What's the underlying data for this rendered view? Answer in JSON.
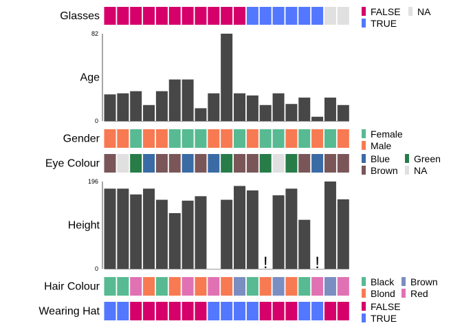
{
  "chart_data": {
    "type": "heatmap",
    "n_columns": 19,
    "na_color": "#e0e0e0",
    "bar_color": "#474747",
    "tracks": [
      {
        "name": "Glasses",
        "kind": "categorical",
        "values": [
          "FALSE",
          "FALSE",
          "FALSE",
          "FALSE",
          "FALSE",
          "FALSE",
          "FALSE",
          "FALSE",
          "FALSE",
          "FALSE",
          "FALSE",
          "TRUE",
          "TRUE",
          "TRUE",
          "TRUE",
          "TRUE",
          "TRUE",
          "NA",
          "NA"
        ],
        "legend": [
          {
            "label": "FALSE",
            "color": "#d5006a"
          },
          {
            "label": "TRUE",
            "color": "#5378ff"
          },
          {
            "label": "NA",
            "color": "#e0e0e0"
          }
        ]
      },
      {
        "name": "Age",
        "kind": "bar",
        "ylim": [
          0,
          82
        ],
        "ticks": [
          "0",
          "82"
        ],
        "values": [
          25,
          26,
          28,
          15,
          28,
          39,
          39,
          12,
          26,
          82,
          26,
          24,
          15,
          26,
          16,
          22,
          4,
          22,
          15
        ]
      },
      {
        "name": "Gender",
        "kind": "categorical",
        "values": [
          "Male",
          "Male",
          "Female",
          "Male",
          "Male",
          "Female",
          "Female",
          "Female",
          "Male",
          "Male",
          "Female",
          "Male",
          "Female",
          "Female",
          "Male",
          "Female",
          "Male",
          "Female",
          "Male"
        ],
        "legend": [
          {
            "label": "Female",
            "color": "#58ba92"
          },
          {
            "label": "Male",
            "color": "#f87a52"
          }
        ]
      },
      {
        "name": "Eye Colour",
        "kind": "categorical",
        "values": [
          "Brown",
          "NA",
          "Green",
          "Blue",
          "Brown",
          "Brown",
          "Blue",
          "Brown",
          "Blue",
          "Green",
          "Brown",
          "Brown",
          "Green",
          "NA",
          "Green",
          "Brown",
          "Blue",
          "Brown",
          "Brown"
        ],
        "legend": [
          {
            "label": "Blue",
            "color": "#3a6ba5"
          },
          {
            "label": "Brown",
            "color": "#7a5659"
          },
          {
            "label": "Green",
            "color": "#277c48"
          },
          {
            "label": "NA",
            "color": "#e0e0e0"
          }
        ]
      },
      {
        "name": "Height",
        "kind": "bar",
        "ylim": [
          0,
          196
        ],
        "ticks": [
          "0",
          "196"
        ],
        "values": [
          180,
          180,
          167,
          180,
          155,
          125,
          153,
          163,
          null,
          155,
          186,
          176,
          null,
          165,
          180,
          110,
          null,
          196,
          156
        ],
        "flags": [
          null,
          null,
          null,
          null,
          null,
          null,
          null,
          null,
          null,
          null,
          null,
          null,
          "!",
          null,
          null,
          null,
          "!",
          null,
          null
        ]
      },
      {
        "name": "Hair Colour",
        "kind": "categorical",
        "values": [
          "Black",
          "Black",
          "Red",
          "Blond",
          "Black",
          "Blond",
          "Red",
          "Blond",
          "Red",
          "Blond",
          "Brown",
          "Black",
          "Blond",
          "Brown",
          "Blond",
          "Black",
          "Red",
          "Brown",
          "Red"
        ],
        "legend": [
          {
            "label": "Black",
            "color": "#58ba92"
          },
          {
            "label": "Blond",
            "color": "#f87a52"
          },
          {
            "label": "Brown",
            "color": "#7b8ec1"
          },
          {
            "label": "Red",
            "color": "#e072b4"
          }
        ]
      },
      {
        "name": "Wearing Hat",
        "kind": "categorical",
        "values": [
          "TRUE",
          "TRUE",
          "FALSE",
          "FALSE",
          "FALSE",
          "FALSE",
          "FALSE",
          "FALSE",
          "TRUE",
          "TRUE",
          "TRUE",
          "TRUE",
          "FALSE",
          "FALSE",
          "FALSE",
          "TRUE",
          "TRUE",
          "FALSE",
          "FALSE"
        ],
        "legend": [
          {
            "label": "FALSE",
            "color": "#d5006a"
          },
          {
            "label": "TRUE",
            "color": "#5378ff"
          }
        ]
      }
    ]
  }
}
